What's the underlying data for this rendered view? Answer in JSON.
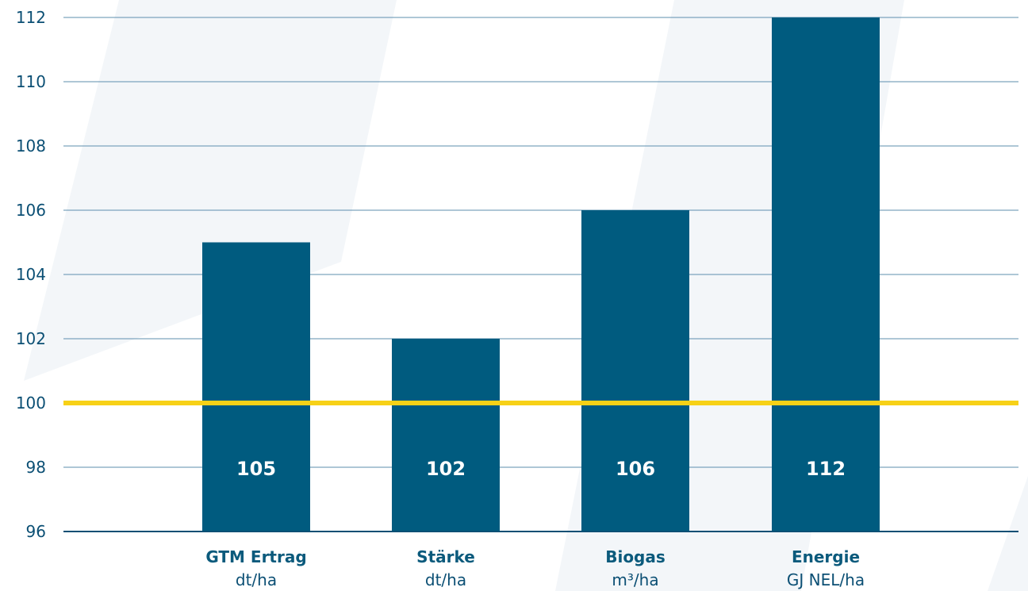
{
  "chart_data": {
    "type": "bar",
    "categories": [
      "GTM Ertrag",
      "Stärke",
      "Biogas",
      "Energie"
    ],
    "units": [
      "dt/ha",
      "dt/ha",
      "m³/ha",
      "GJ NEL/ha"
    ],
    "values": [
      105,
      102,
      106,
      112
    ],
    "data_labels": [
      "105",
      "102",
      "106",
      "112"
    ],
    "ylim": [
      96,
      112
    ],
    "yticks": [
      96,
      98,
      100,
      102,
      104,
      106,
      108,
      110,
      112
    ],
    "reference_line": 100,
    "grid": true,
    "title": "",
    "xlabel": "",
    "ylabel": ""
  },
  "colors": {
    "bar": "#005b7f",
    "reference_line": "#f7d117",
    "grid": "#5d8fae",
    "axis": "#0b4f74",
    "background_shape": "#f3f6f9"
  }
}
